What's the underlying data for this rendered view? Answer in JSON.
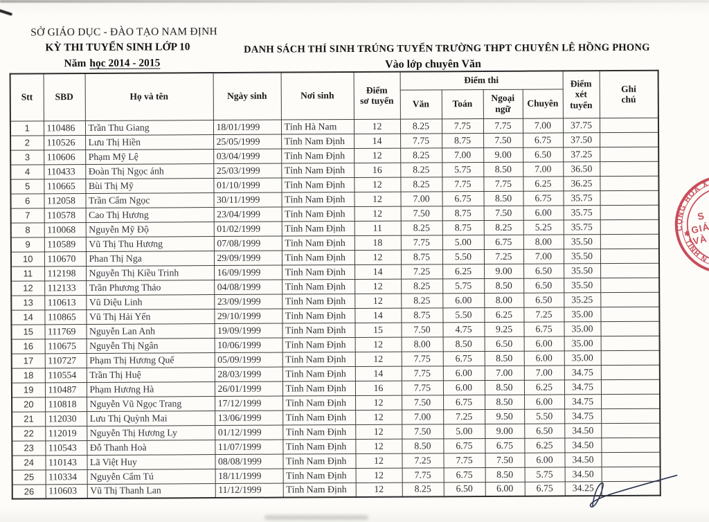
{
  "header": {
    "org": "SỞ GIÁO DỤC - ĐÀO TẠO NAM ĐỊNH",
    "exam": "KỲ THI TUYỂN SINH LỚP 10",
    "year_prefix": "Năm",
    "year_underlined": "học 2014 - 2015",
    "title": "DANH SÁCH THÍ SINH TRÚNG TUYỂN TRƯỜNG THPT CHUYÊN LÊ HỒNG PHONG",
    "subtitle": "Vào lớp chuyên Văn"
  },
  "table": {
    "columns": {
      "stt": "Stt",
      "sbd": "SBD",
      "name": "Họ và tên",
      "dob": "Ngày sinh",
      "pob": "Nơi sinh",
      "so_tuyen": "Điểm\nsơ tuyển",
      "diem_thi": "Điểm thi",
      "van": "Văn",
      "toan": "Toán",
      "ngoai_ngu": "Ngoại\nngữ",
      "chuyen": "Chuyên",
      "xet_tuyen": "Điểm\nxét\ntuyển",
      "ghi_chu": "Ghi\nchú"
    },
    "rows": [
      [
        "1",
        "110486",
        "Trần Thu Giang",
        "18/01/1999",
        "Tỉnh Hà Nam",
        "12",
        "8.25",
        "7.75",
        "7.75",
        "7.00",
        "37.75",
        ""
      ],
      [
        "2",
        "110526",
        "Lưu Thị Hiền",
        "25/05/1999",
        "Tỉnh Nam Định",
        "14",
        "7.75",
        "8.75",
        "7.50",
        "6.75",
        "37.50",
        ""
      ],
      [
        "3",
        "110606",
        "Phạm Mỹ Lệ",
        "03/04/1999",
        "Tỉnh Nam Định",
        "12",
        "8.25",
        "7.00",
        "9.00",
        "6.50",
        "37.25",
        ""
      ],
      [
        "4",
        "110433",
        "Đoàn Thị Ngọc ánh",
        "25/03/1999",
        "Tỉnh Nam Định",
        "16",
        "8.25",
        "5.75",
        "8.50",
        "7.00",
        "36.50",
        ""
      ],
      [
        "5",
        "110665",
        "Bùi Thị Mỹ",
        "01/10/1999",
        "Tỉnh Nam Định",
        "12",
        "8.25",
        "7.75",
        "7.75",
        "6.25",
        "36.25",
        ""
      ],
      [
        "6",
        "112058",
        "Trần Cẩm Ngọc",
        "30/11/1999",
        "Tỉnh Nam Định",
        "12",
        "7.00",
        "6.75",
        "8.50",
        "6.75",
        "35.75",
        ""
      ],
      [
        "7",
        "110578",
        "Cao Thị Hương",
        "23/04/1999",
        "Tỉnh Nam Định",
        "12",
        "7.50",
        "8.75",
        "7.50",
        "6.00",
        "35.75",
        ""
      ],
      [
        "8",
        "110068",
        "Nguyễn Mỹ Độ",
        "01/02/1999",
        "Tỉnh Nam Định",
        "11",
        "8.25",
        "8.75",
        "8.25",
        "5.25",
        "35.75",
        ""
      ],
      [
        "9",
        "110589",
        "Vũ Thị Thu Hương",
        "07/08/1999",
        "Tỉnh Nam Định",
        "18",
        "7.75",
        "5.00",
        "6.75",
        "8.00",
        "35.50",
        ""
      ],
      [
        "10",
        "110670",
        "Phan Thị Nga",
        "29/09/1999",
        "Tỉnh Nam Định",
        "12",
        "8.75",
        "5.50",
        "7.25",
        "7.00",
        "35.50",
        ""
      ],
      [
        "11",
        "112198",
        "Nguyễn Thị Kiều Trinh",
        "16/09/1999",
        "Tỉnh Nam Định",
        "14",
        "7.25",
        "6.25",
        "9.00",
        "6.50",
        "35.50",
        ""
      ],
      [
        "12",
        "112133",
        "Trần Phương Thảo",
        "04/08/1999",
        "Tỉnh Nam Định",
        "12",
        "8.25",
        "5.75",
        "8.50",
        "6.50",
        "35.50",
        ""
      ],
      [
        "13",
        "110613",
        "Vũ Diệu Linh",
        "23/09/1999",
        "Tỉnh Nam Định",
        "12",
        "8.25",
        "6.00",
        "8.00",
        "6.50",
        "35.25",
        ""
      ],
      [
        "14",
        "110865",
        "Vũ Thị Hải Yến",
        "29/10/1999",
        "Tỉnh Nam Định",
        "14",
        "8.75",
        "5.50",
        "6.25",
        "7.25",
        "35.00",
        ""
      ],
      [
        "15",
        "111769",
        "Nguyễn Lan Anh",
        "19/09/1999",
        "Tỉnh Nam Định",
        "15",
        "7.50",
        "4.75",
        "9.25",
        "6.75",
        "35.00",
        ""
      ],
      [
        "16",
        "110675",
        "Nguyễn Thị Ngân",
        "10/06/1999",
        "Tỉnh Nam Định",
        "12",
        "8.00",
        "8.50",
        "6.50",
        "6.00",
        "35.00",
        ""
      ],
      [
        "17",
        "110727",
        "Phạm Thị Hương Quế",
        "05/09/1999",
        "Tỉnh Nam Định",
        "12",
        "7.75",
        "6.75",
        "8.50",
        "6.00",
        "35.00",
        ""
      ],
      [
        "18",
        "110554",
        "Trần Thị Huệ",
        "28/03/1999",
        "Tỉnh Nam Định",
        "14",
        "7.75",
        "6.00",
        "7.00",
        "7.00",
        "34.75",
        ""
      ],
      [
        "19",
        "110487",
        "Phạm Hương Hà",
        "26/01/1999",
        "Tỉnh Nam Định",
        "16",
        "7.75",
        "6.00",
        "8.50",
        "6.25",
        "34.75",
        ""
      ],
      [
        "20",
        "110818",
        "Nguyễn Vũ Ngọc Trang",
        "17/12/1999",
        "Tỉnh Nam Định",
        "12",
        "7.50",
        "6.75",
        "8.50",
        "6.00",
        "34.75",
        ""
      ],
      [
        "21",
        "112030",
        "Lưu Thị Quỳnh Mai",
        "13/06/1999",
        "Tỉnh Nam Định",
        "12",
        "7.00",
        "7.25",
        "9.50",
        "5.50",
        "34.75",
        ""
      ],
      [
        "22",
        "112019",
        "Nguyễn Thị Hương Ly",
        "01/12/1999",
        "Tỉnh Nam Định",
        "12",
        "7.50",
        "5.00",
        "9.00",
        "6.50",
        "34.50",
        ""
      ],
      [
        "23",
        "110543",
        "Đỗ Thanh Hoà",
        "11/07/1999",
        "Tỉnh Nam Định",
        "12",
        "8.50",
        "6.75",
        "6.75",
        "6.25",
        "34.50",
        ""
      ],
      [
        "24",
        "110143",
        "Lã Việt Huy",
        "08/08/1999",
        "Tỉnh Nam Định",
        "12",
        "7.25",
        "7.75",
        "7.50",
        "6.00",
        "34.50",
        ""
      ],
      [
        "25",
        "110334",
        "Nguyễn Cẩm Tú",
        "18/11/1999",
        "Tỉnh Nam Định",
        "12",
        "7.75",
        "6.75",
        "8.50",
        "5.75",
        "34.50",
        ""
      ],
      [
        "26",
        "110603",
        "Vũ Thị Thanh Lan",
        "11/12/1999",
        "Tỉnh Nam Định",
        "12",
        "8.25",
        "6.50",
        "6.00",
        "6.75",
        "34.25",
        ""
      ]
    ]
  },
  "stamp": {
    "arc_top": "CỘNG HOÀ X",
    "arc_bottom": "TỈNH N",
    "star": "✱",
    "line1": "S",
    "line2": "GIÁO",
    "line3": "VÀ Đ",
    "color": "#c4404f"
  }
}
